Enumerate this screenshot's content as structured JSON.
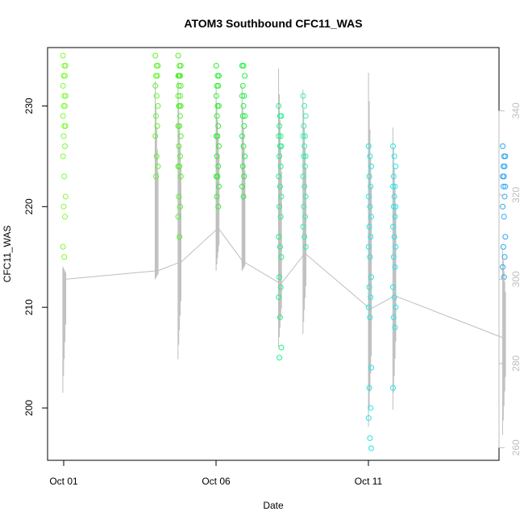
{
  "chart_data": {
    "type": "scatter",
    "title": "ATOM3 Southbound CFC11_WAS",
    "xlabel": "Date",
    "ylabel": "CFC11_WAS",
    "x_ticks": [
      "Oct 01",
      "Oct 06",
      "Oct 11"
    ],
    "x_range_days": [
      0.0,
      14.6
    ],
    "ylim": [
      194.8,
      235.8
    ],
    "y_ticks": [
      200,
      210,
      220,
      230
    ],
    "y2_range": [
      257,
      355
    ],
    "y2_ticks": [
      260,
      280,
      300,
      320,
      340
    ],
    "grid": false,
    "colors": {
      "axis": "#000000",
      "secondary": "#bebebe"
    },
    "series": [
      {
        "type": "scatter",
        "groups": [
          {
            "x_day": 0.02,
            "color": "#7cfc34",
            "values": [
              235,
              234,
              234,
              233,
              233,
              232,
              231,
              231,
              230,
              230,
              229,
              228,
              228,
              227,
              226,
              225,
              223,
              221,
              220,
              219,
              216,
              215
            ]
          },
          {
            "x_day": 3.05,
            "color": "#5ff52a",
            "values": [
              235,
              234,
              234,
              233,
              233,
              232,
              231,
              230,
              229,
              228,
              227,
              225,
              224,
              223
            ]
          },
          {
            "x_day": 3.8,
            "color": "#4ff228",
            "values": [
              235,
              234,
              234,
              233,
              233,
              233,
              233,
              232,
              232,
              231,
              231,
              230,
              230,
              230,
              229,
              228,
              228,
              227,
              226,
              225,
              224,
              224,
              223,
              221,
              220,
              219,
              217
            ]
          },
          {
            "x_day": 5.05,
            "color": "#2ff030",
            "values": [
              234,
              233,
              233,
              232,
              232,
              231,
              230,
              230,
              229,
              228,
              227,
              227,
              226,
              225,
              224,
              223,
              223,
              222,
              221,
              220
            ]
          },
          {
            "x_day": 5.9,
            "color": "#1ff040",
            "values": [
              234,
              234,
              233,
              232,
              231,
              231,
              230,
              229,
              229,
              228,
              227,
              226,
              225,
              224,
              223,
              222,
              221
            ]
          },
          {
            "x_day": 7.1,
            "color": "#22f08a",
            "values": [
              230,
              229,
              229,
              228,
              227,
              227,
              226,
              226,
              225,
              224,
              223,
              222,
              221,
              220,
              219,
              217,
              216,
              215,
              213,
              212,
              211,
              209,
              206,
              205
            ]
          },
          {
            "x_day": 7.9,
            "color": "#2ff0a8",
            "values": [
              231,
              230,
              229,
              228,
              227,
              227,
              226,
              225,
              225,
              224,
              223,
              222,
              221,
              220,
              219,
              218,
              217,
              216
            ]
          },
          {
            "x_day": 10.05,
            "color": "#22e8e0",
            "values": [
              226,
              225,
              224,
              223,
              222,
              221,
              220,
              219,
              218,
              217,
              216,
              215,
              213,
              212,
              211,
              210,
              209,
              204,
              202,
              200,
              199,
              197,
              196
            ]
          },
          {
            "x_day": 10.85,
            "color": "#28e4ea",
            "values": [
              226,
              225,
              224,
              223,
              222,
              222,
              221,
              220,
              220,
              219,
              218,
              217,
              216,
              215,
              214,
              212,
              211,
              210,
              209,
              208,
              202
            ]
          },
          {
            "x_day": 14.45,
            "color": "#2aa8f0",
            "values": [
              226,
              225,
              225,
              224,
              224,
              223,
              223,
              222,
              222,
              221,
              220,
              219,
              217,
              216,
              215,
              214,
              213
            ]
          }
        ]
      },
      {
        "type": "line",
        "axis": "right",
        "color": "#bebebe",
        "spikes": [
          {
            "x_day": 0.02,
            "min": 273,
            "max": 303,
            "base": 300
          },
          {
            "x_day": 3.05,
            "min": 300,
            "max": 347,
            "base": 302
          },
          {
            "x_day": 3.8,
            "min": 281,
            "max": 347,
            "base": 304
          },
          {
            "x_day": 5.05,
            "min": 302,
            "max": 346,
            "base": 312
          },
          {
            "x_day": 5.9,
            "min": 302,
            "max": 346,
            "base": 304
          },
          {
            "x_day": 7.1,
            "min": 284,
            "max": 350,
            "base": 299
          },
          {
            "x_day": 7.9,
            "min": 287,
            "max": 345,
            "base": 306
          },
          {
            "x_day": 10.05,
            "min": 265,
            "max": 349,
            "base": 293
          },
          {
            "x_day": 10.85,
            "min": 269,
            "max": 336,
            "base": 296
          },
          {
            "x_day": 14.45,
            "min": 263,
            "max": 307,
            "base": 286
          }
        ]
      }
    ]
  }
}
